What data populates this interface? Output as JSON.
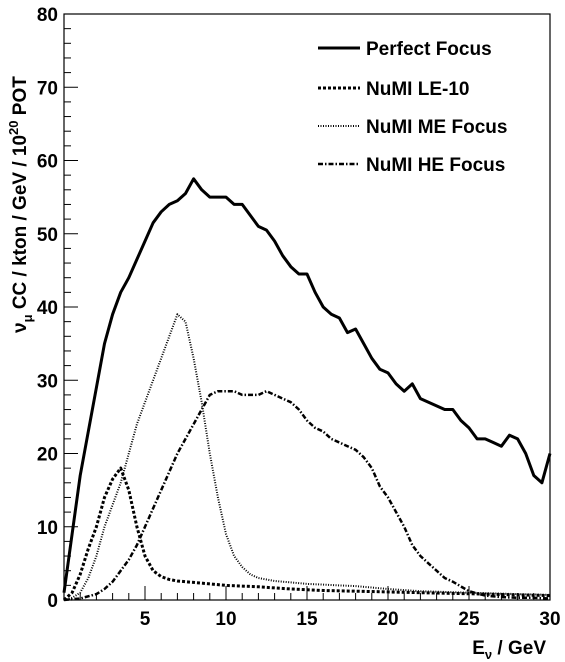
{
  "chart_data": {
    "type": "line",
    "title": "",
    "xlabel": {
      "main": "E",
      "sub": "ν",
      "rest": " / GeV"
    },
    "ylabel": {
      "nu": "ν",
      "mu": "μ",
      "mid": " CC / kton / GeV / 10",
      "sup": "20",
      "end": " POT"
    },
    "xlim": [
      0,
      30
    ],
    "ylim": [
      0,
      80
    ],
    "x_ticks": [
      5,
      10,
      15,
      20,
      25,
      30
    ],
    "x_tick_labels": [
      "5",
      "10",
      "15",
      "20",
      "25",
      "30"
    ],
    "y_ticks": [
      0,
      10,
      20,
      30,
      40,
      50,
      60,
      70,
      80
    ],
    "y_tick_labels": [
      "0",
      "10",
      "20",
      "30",
      "40",
      "50",
      "60",
      "70",
      "80"
    ],
    "legend_position": "top-right",
    "series": [
      {
        "name": "Perfect Focus",
        "style": "solid",
        "x": [
          0,
          0.5,
          1,
          1.5,
          2,
          2.5,
          3,
          3.5,
          4,
          4.5,
          5,
          5.5,
          6,
          6.5,
          7,
          7.5,
          8,
          8.5,
          9,
          9.5,
          10,
          10.5,
          11,
          11.5,
          12,
          12.5,
          13,
          13.5,
          14,
          14.5,
          15,
          15.5,
          16,
          16.5,
          17,
          17.5,
          18,
          18.5,
          19,
          19.5,
          20,
          20.5,
          21,
          21.5,
          22,
          22.5,
          23,
          23.5,
          24,
          24.5,
          25,
          25.5,
          26,
          26.5,
          27,
          27.5,
          28,
          28.5,
          29,
          29.5,
          30
        ],
        "y": [
          1,
          9,
          17,
          23,
          29,
          35,
          39,
          42,
          44,
          46.5,
          49,
          51.5,
          53,
          54,
          54.5,
          55.5,
          57.5,
          56,
          55,
          55,
          55,
          54,
          54,
          52.5,
          51,
          50.5,
          49,
          47,
          45.5,
          44.5,
          44.5,
          42,
          40,
          39,
          38.5,
          36.5,
          37,
          35,
          33,
          31.5,
          31,
          29.5,
          28.5,
          29.5,
          27.5,
          27,
          26.5,
          26,
          26,
          24.5,
          23.5,
          22,
          22,
          21.5,
          21,
          22.5,
          22,
          20,
          17,
          16,
          20
        ]
      },
      {
        "name": "NuMI LE-10",
        "style": "dashed",
        "x": [
          0,
          0.5,
          1,
          1.5,
          2,
          2.5,
          3,
          3.5,
          4,
          4.5,
          5,
          5.5,
          6,
          6.5,
          7,
          8,
          9,
          10,
          12,
          14,
          16,
          18,
          20,
          22,
          24,
          26,
          28,
          30
        ],
        "y": [
          0,
          1,
          3.5,
          7,
          10,
          14,
          16.5,
          18,
          15,
          10,
          6,
          4,
          3.2,
          2.8,
          2.6,
          2.4,
          2.2,
          2,
          1.8,
          1.5,
          1.3,
          1.2,
          1.1,
          1,
          0.9,
          0.8,
          0.7,
          0.6
        ]
      },
      {
        "name": "NuMI ME Focus",
        "style": "dotted",
        "x": [
          0,
          0.5,
          1,
          1.5,
          2,
          2.5,
          3,
          3.5,
          4,
          4.5,
          5,
          5.5,
          6,
          6.5,
          7,
          7.5,
          8,
          8.5,
          9,
          9.5,
          10,
          10.5,
          11,
          11.5,
          12,
          12.5,
          13,
          14,
          15,
          16,
          17,
          18,
          20,
          22,
          25,
          28,
          30
        ],
        "y": [
          0,
          0.3,
          1,
          3,
          6,
          10,
          13,
          16,
          20,
          24,
          27,
          30,
          33,
          36,
          39,
          38,
          33,
          27,
          20,
          14,
          9,
          6,
          4.5,
          3.5,
          3,
          2.8,
          2.6,
          2.4,
          2.2,
          2.1,
          2,
          1.9,
          1.5,
          1.2,
          1,
          0.8,
          0.7
        ]
      },
      {
        "name": "NuMI HE Focus",
        "style": "dashdot",
        "x": [
          0,
          1,
          2,
          2.5,
          3,
          3.5,
          4,
          4.5,
          5,
          5.5,
          6,
          6.5,
          7,
          7.5,
          8,
          8.5,
          9,
          9.5,
          10,
          10.5,
          11,
          11.5,
          12,
          12.5,
          13,
          13.5,
          14,
          14.5,
          15,
          15.5,
          16,
          16.5,
          17,
          17.5,
          18,
          18.5,
          19,
          19.5,
          20,
          20.5,
          21,
          21.5,
          22,
          22.5,
          23,
          23.5,
          24,
          25,
          26,
          27,
          28,
          29,
          30
        ],
        "y": [
          0,
          0.2,
          0.8,
          1.5,
          2.5,
          4,
          5.5,
          7.5,
          10,
          12.5,
          15,
          17.5,
          20,
          22,
          24,
          26,
          28,
          28.5,
          28.5,
          28.5,
          28,
          28,
          28,
          28.5,
          28,
          27.5,
          27,
          26,
          24.5,
          23.5,
          23,
          22,
          21.5,
          21,
          20.5,
          19.5,
          18,
          15.5,
          14,
          12,
          10,
          7.5,
          6,
          5,
          4,
          3,
          2.5,
          1.2,
          0.6,
          0.4,
          0.3,
          0.3,
          0.2
        ]
      }
    ]
  }
}
